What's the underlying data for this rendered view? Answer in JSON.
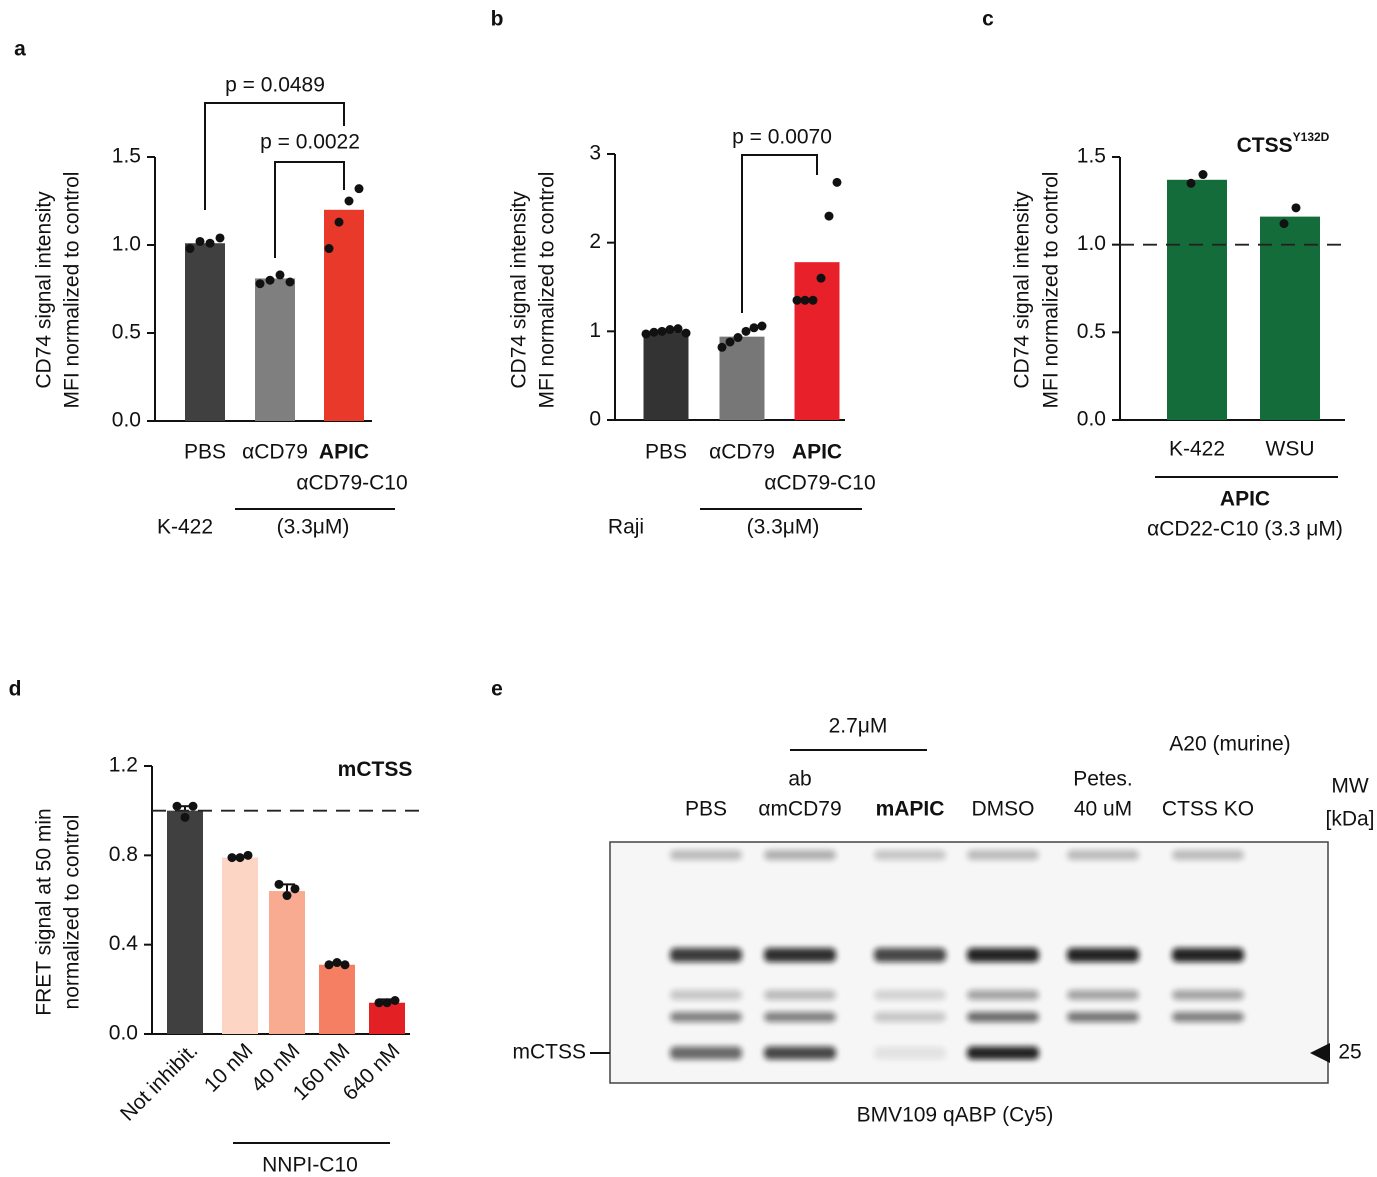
{
  "chart_data": [
    {
      "type": "bar",
      "panel": "a",
      "y_label": [
        "CD74 signal intensity",
        "MFI normalized to control"
      ],
      "categories": [
        "PBS",
        "αCD79",
        "APIC"
      ],
      "sublabel": "αCD79-C10",
      "values": [
        1.01,
        0.81,
        1.2
      ],
      "colors": [
        "#404040",
        "#7f7f7f",
        "#e8392a"
      ],
      "points": [
        [
          0.98,
          1.02,
          1.01,
          1.04
        ],
        [
          0.78,
          0.8,
          0.83,
          0.79
        ],
        [
          0.98,
          1.13,
          1.25,
          1.32
        ]
      ],
      "ylim": [
        0,
        1.5
      ],
      "yticks": [
        {
          "value": 0,
          "label": "0.0"
        },
        {
          "value": 0.5,
          "label": "0.5"
        },
        {
          "value": 1,
          "label": "1.0"
        },
        {
          "value": 1.5,
          "label": "1.5"
        }
      ],
      "annotations": [
        "p = 0.0489",
        "p = 0.0022"
      ],
      "cell_line": "K-422",
      "treatment": "(3.3μM)"
    },
    {
      "type": "bar",
      "panel": "b",
      "y_label": [
        "CD74 signal intensity",
        "MFI normalized to control"
      ],
      "categories": [
        "PBS",
        "αCD79",
        "APIC"
      ],
      "sublabel": "αCD79-C10",
      "values": [
        1.0,
        0.94,
        1.78
      ],
      "colors": [
        "#333333",
        "#777777",
        "#e8202a"
      ],
      "points": [
        [
          0.97,
          0.99,
          1.0,
          1.02,
          1.03,
          0.98
        ],
        [
          0.82,
          0.88,
          0.93,
          1.0,
          1.04,
          1.06
        ],
        [
          1.35,
          1.35,
          1.35,
          1.6,
          2.3,
          2.68
        ]
      ],
      "ylim": [
        0,
        3
      ],
      "yticks": [
        0,
        1,
        2,
        3
      ],
      "annotations": [
        "p = 0.0070"
      ],
      "cell_line": "Raji",
      "treatment": "(3.3μM)"
    },
    {
      "type": "bar",
      "panel": "c",
      "y_label": [
        "CD74 signal intensity",
        "MFI normalized to control"
      ],
      "categories": [
        "K-422",
        "WSU"
      ],
      "values": [
        1.37,
        1.16
      ],
      "colors": [
        "#146c3a",
        "#146c3a"
      ],
      "points": [
        [
          1.35,
          1.4
        ],
        [
          1.12,
          1.21
        ]
      ],
      "ylim": [
        0,
        1.5
      ],
      "yticks": [
        {
          "value": 0,
          "label": "0.0"
        },
        {
          "value": 0.5,
          "label": "0.5"
        },
        {
          "value": 1,
          "label": "1.0"
        },
        {
          "value": 1.5,
          "label": "1.5"
        }
      ],
      "reference_line": 1,
      "annotation": {
        "text": "CTSS",
        "superscript": "Y132D"
      },
      "treatment_name": "APIC",
      "treatment": "αCD22-C10 (3.3 μM)"
    },
    {
      "type": "bar",
      "panel": "d",
      "y_label": [
        "FRET signal at 50 min",
        "normalized to control"
      ],
      "categories": [
        "Not inhibit.",
        "10 nM",
        "40 nM",
        "160 nM",
        "640 nM"
      ],
      "values": [
        1.0,
        0.79,
        0.64,
        0.31,
        0.14
      ],
      "errors": [
        0.02,
        0.005,
        0.03,
        0.01,
        0.015
      ],
      "colors": [
        "#404040",
        "#fcd5c4",
        "#f8ab90",
        "#f47f63",
        "#e32124"
      ],
      "points": [
        [
          1.02,
          0.97,
          1.02
        ],
        [
          0.79,
          0.79,
          0.8
        ],
        [
          0.67,
          0.62,
          0.65
        ],
        [
          0.31,
          0.32,
          0.31
        ],
        [
          0.14,
          0.14,
          0.15
        ]
      ],
      "ylim": [
        0,
        1.2
      ],
      "yticks": [
        {
          "value": 0,
          "label": "0.0"
        },
        {
          "value": 0.4,
          "label": "0.4"
        },
        {
          "value": 0.8,
          "label": "0.8"
        },
        {
          "value": 1.2,
          "label": "1.2"
        }
      ],
      "reference_line": 1,
      "annotation": {
        "text": "mCTSS"
      },
      "treatment": "NNPI-C10"
    }
  ],
  "blot": {
    "panel": "e",
    "concentration": "2.7μM",
    "cell_line": "A20 (murine)",
    "lanes": [
      [
        "PBS"
      ],
      [
        "ab",
        "αmCD79"
      ],
      [
        "mAPIC"
      ],
      [
        "DMSO"
      ],
      [
        "Petes.",
        "40 uM"
      ],
      [
        "CTSS KO"
      ]
    ],
    "mw_label": [
      "MW",
      "[kDa]"
    ],
    "band_label": "mCTSS",
    "marker": 25,
    "caption": "BMV109 qABP (Cy5)"
  }
}
